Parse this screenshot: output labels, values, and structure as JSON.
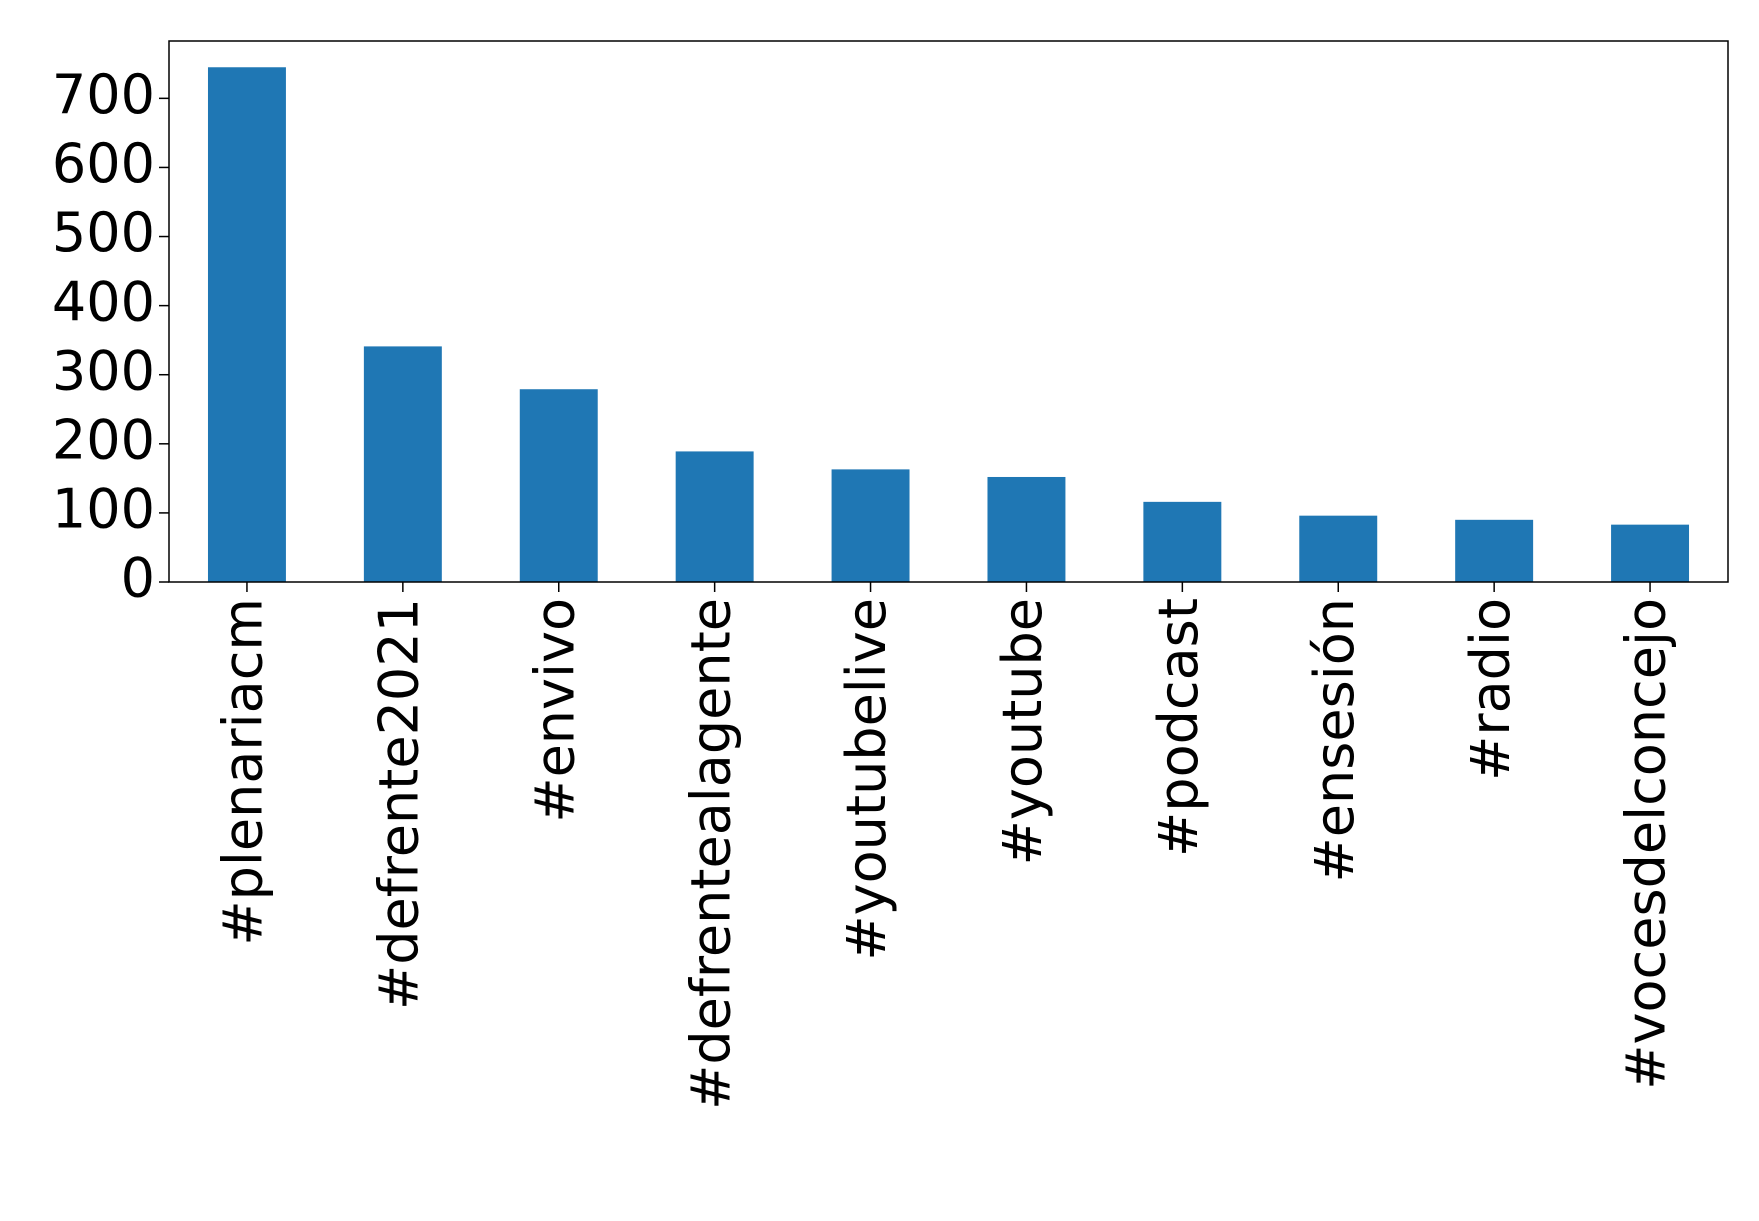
{
  "chart_data": {
    "type": "bar",
    "categories": [
      "#plenariacm",
      "#defrente2021",
      "#envivo",
      "#defrentealagente",
      "#youtubelive",
      "#youtube",
      "#podcast",
      "#ensesión",
      "#radio",
      "#vocesdelconcejo"
    ],
    "values": [
      745,
      341,
      279,
      189,
      163,
      152,
      116,
      96,
      90,
      83
    ],
    "color": "#1f77b4",
    "ylim": [
      0,
      783
    ],
    "yticks": [
      0,
      100,
      200,
      300,
      400,
      500,
      600,
      700
    ],
    "grid": false
  }
}
